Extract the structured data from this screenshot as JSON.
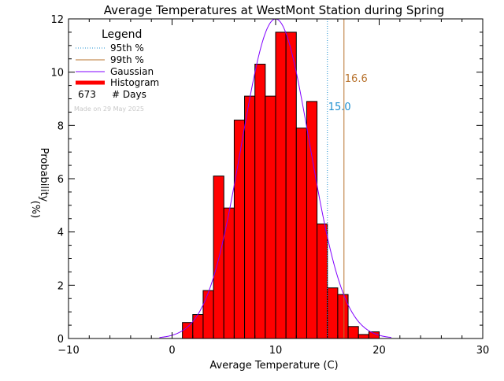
{
  "chart_data": {
    "type": "bar",
    "title": "Average Temperatures at WestMont Station during Spring",
    "xlabel": "Average Temperature (C)",
    "ylabel": "Probability",
    "ylabel_unit": "(%)",
    "xlim": [
      -10,
      30
    ],
    "ylim": [
      0,
      12
    ],
    "x_ticks": [
      -10,
      0,
      10,
      20,
      30
    ],
    "y_ticks": [
      0,
      2,
      4,
      6,
      8,
      10,
      12
    ],
    "histogram": {
      "bin_width": 1,
      "bin_left_edges": [
        1,
        2,
        3,
        4,
        5,
        6,
        7,
        8,
        9,
        10,
        11,
        12,
        13,
        14,
        15,
        16,
        17,
        18,
        19
      ],
      "values": [
        0.6,
        0.9,
        1.8,
        6.1,
        4.9,
        8.2,
        9.1,
        10.3,
        9.1,
        11.5,
        11.5,
        7.9,
        8.9,
        4.3,
        1.9,
        1.65,
        0.45,
        0.15,
        0.25
      ],
      "color": "#ff0000"
    },
    "gaussian": {
      "mean": 10.0,
      "peak": 12.0,
      "sigma": 3.3,
      "color": "#8000ff"
    },
    "percentile_95": {
      "value": 15.0,
      "label": "15.0",
      "color": "#1e90d0"
    },
    "percentile_99": {
      "value": 16.6,
      "label": "16.6",
      "color": "#b8732e"
    },
    "legend": {
      "title": "Legend",
      "position": "top-left",
      "items": [
        {
          "label": "95th %",
          "style": "dotted",
          "color": "#1e90d0"
        },
        {
          "label": "99th %",
          "style": "solid",
          "color": "#b8732e"
        },
        {
          "label": "Gaussian",
          "style": "solid",
          "color": "#8000ff"
        },
        {
          "label": "Histogram",
          "style": "thick",
          "color": "#ff0000"
        }
      ],
      "days_count": "673",
      "days_label": "# Days"
    },
    "watermark": "Made on 29 May 2025"
  }
}
